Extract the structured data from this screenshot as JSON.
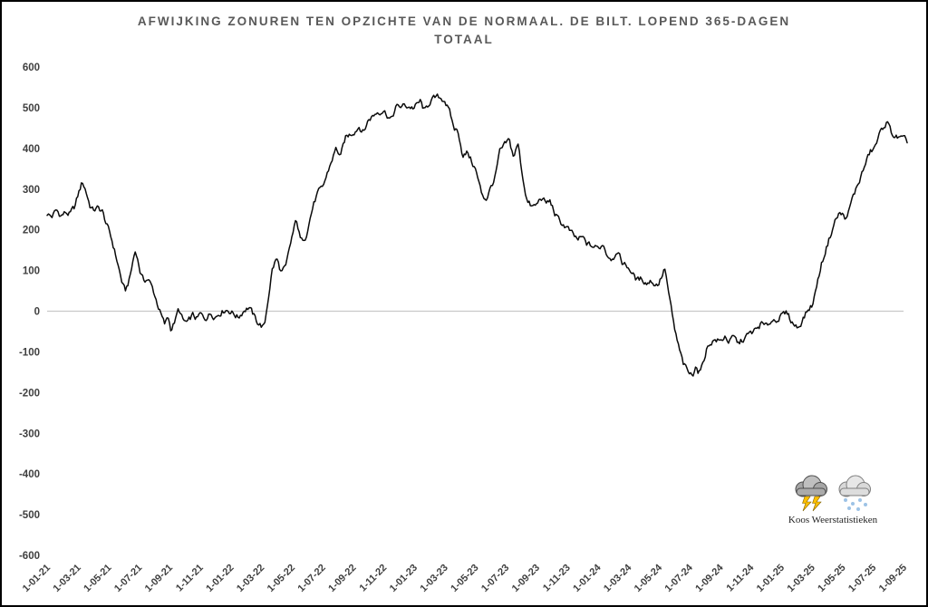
{
  "title": {
    "line1": "AFWIJKING ZONUREN TEN OPZICHTE VAN DE NORMAAL. DE BILT. LOPEND 365-DAGEN",
    "line2": "TOTAAL"
  },
  "watermark": {
    "text": "Koos Weerstatistieken",
    "icons": [
      "storm-cloud-icon",
      "snow-cloud-icon"
    ]
  },
  "chart_data": {
    "type": "line",
    "title": "Afwijking zonuren ten opzichte van de normaal. De Bilt. Lopend 365-dagen totaal",
    "xlabel": "",
    "ylabel": "",
    "ylim": [
      -600,
      600
    ],
    "ytick_step": 100,
    "grid": "zero-line-only",
    "legend": "none",
    "line_color": "#0a0a0a",
    "zero_line_color": "#c9c9c9",
    "axis_label_color": "#3f3f3f",
    "x_tick_labels": [
      "1-01-21",
      "1-03-21",
      "1-05-21",
      "1-07-21",
      "1-09-21",
      "1-11-21",
      "1-01-22",
      "1-03-22",
      "1-05-22",
      "1-07-22",
      "1-09-22",
      "1-11-22",
      "1-01-23",
      "1-03-23",
      "1-05-23",
      "1-07-23",
      "1-09-23",
      "1-11-23",
      "1-01-24",
      "1-03-24",
      "1-05-24",
      "1-07-24",
      "1-09-24",
      "1-11-24",
      "1-01-25",
      "1-03-25",
      "1-05-25",
      "1-07-25",
      "1-09-25"
    ],
    "x_unit": "months since 2021-01-01 (ticks every 2 months)",
    "series": [
      {
        "name": "Afwijking zonuren lopend 365-dagen totaal",
        "points": [
          [
            0,
            240
          ],
          [
            0.3,
            232
          ],
          [
            0.6,
            248
          ],
          [
            0.9,
            235
          ],
          [
            1.2,
            242
          ],
          [
            1.5,
            238
          ],
          [
            1.8,
            255
          ],
          [
            2.1,
            295
          ],
          [
            2.3,
            318
          ],
          [
            2.5,
            300
          ],
          [
            2.8,
            260
          ],
          [
            3.0,
            248
          ],
          [
            3.3,
            253
          ],
          [
            3.6,
            246
          ],
          [
            3.8,
            222
          ],
          [
            4.1,
            190
          ],
          [
            4.3,
            165
          ],
          [
            4.6,
            120
          ],
          [
            4.9,
            70
          ],
          [
            5.1,
            48
          ],
          [
            5.4,
            80
          ],
          [
            5.7,
            140
          ],
          [
            5.8,
            150
          ],
          [
            6.1,
            95
          ],
          [
            6.3,
            75
          ],
          [
            6.6,
            80
          ],
          [
            6.9,
            55
          ],
          [
            7.2,
            20
          ],
          [
            7.5,
            -15
          ],
          [
            7.7,
            -35
          ],
          [
            7.9,
            -12
          ],
          [
            8.1,
            -45
          ],
          [
            8.4,
            -20
          ],
          [
            8.6,
            5
          ],
          [
            8.9,
            -25
          ],
          [
            9.2,
            -30
          ],
          [
            9.5,
            -10
          ],
          [
            9.8,
            -20
          ],
          [
            10.0,
            -8
          ],
          [
            10.3,
            -18
          ],
          [
            10.7,
            -5
          ],
          [
            11.0,
            -12
          ],
          [
            11.4,
            0
          ],
          [
            11.7,
            5
          ],
          [
            12.0,
            0
          ],
          [
            12.5,
            -15
          ],
          [
            12.9,
            5
          ],
          [
            13.2,
            10
          ],
          [
            13.7,
            -25
          ],
          [
            14.0,
            -35
          ],
          [
            14.2,
            -40
          ],
          [
            14.7,
            100
          ],
          [
            15.0,
            130
          ],
          [
            15.3,
            95
          ],
          [
            15.6,
            105
          ],
          [
            16.0,
            180
          ],
          [
            16.3,
            225
          ],
          [
            16.6,
            170
          ],
          [
            16.9,
            185
          ],
          [
            17.4,
            260
          ],
          [
            17.7,
            290
          ],
          [
            18.0,
            300
          ],
          [
            18.6,
            370
          ],
          [
            18.9,
            400
          ],
          [
            19.2,
            380
          ],
          [
            19.5,
            425
          ],
          [
            20.0,
            440
          ],
          [
            20.4,
            455
          ],
          [
            20.7,
            440
          ],
          [
            21.0,
            470
          ],
          [
            21.3,
            480
          ],
          [
            21.6,
            490
          ],
          [
            22.0,
            495
          ],
          [
            22.5,
            470
          ],
          [
            22.8,
            500
          ],
          [
            23.4,
            505
          ],
          [
            24.0,
            500
          ],
          [
            24.4,
            515
          ],
          [
            24.7,
            490
          ],
          [
            25.1,
            520
          ],
          [
            25.6,
            525
          ],
          [
            26.0,
            520
          ],
          [
            26.3,
            490
          ],
          [
            26.6,
            450
          ],
          [
            26.9,
            440
          ],
          [
            27.2,
            380
          ],
          [
            27.5,
            390
          ],
          [
            27.8,
            365
          ],
          [
            28.0,
            350
          ],
          [
            28.4,
            290
          ],
          [
            28.7,
            275
          ],
          [
            29.3,
            330
          ],
          [
            29.6,
            390
          ],
          [
            29.9,
            405
          ],
          [
            30.2,
            420
          ],
          [
            30.5,
            380
          ],
          [
            30.8,
            410
          ],
          [
            31.1,
            330
          ],
          [
            31.4,
            270
          ],
          [
            31.7,
            255
          ],
          [
            32.0,
            260
          ],
          [
            32.3,
            280
          ],
          [
            32.6,
            265
          ],
          [
            32.9,
            270
          ],
          [
            33.2,
            240
          ],
          [
            33.5,
            220
          ],
          [
            34.0,
            205
          ],
          [
            34.4,
            185
          ],
          [
            34.7,
            175
          ],
          [
            35.0,
            180
          ],
          [
            35.3,
            165
          ],
          [
            35.6,
            160
          ],
          [
            36.0,
            155
          ],
          [
            36.4,
            165
          ],
          [
            36.6,
            140
          ],
          [
            37.0,
            130
          ],
          [
            37.2,
            150
          ],
          [
            37.6,
            120
          ],
          [
            38.1,
            105
          ],
          [
            38.3,
            90
          ],
          [
            38.6,
            75
          ],
          [
            38.9,
            80
          ],
          [
            39.2,
            70
          ],
          [
            39.5,
            75
          ],
          [
            39.8,
            65
          ],
          [
            40.0,
            70
          ],
          [
            40.4,
            105
          ],
          [
            40.7,
            30
          ],
          [
            41.0,
            -40
          ],
          [
            41.3,
            -90
          ],
          [
            41.6,
            -130
          ],
          [
            41.9,
            -150
          ],
          [
            42.2,
            -160
          ],
          [
            42.4,
            -130
          ],
          [
            42.6,
            -150
          ],
          [
            42.8,
            -140
          ],
          [
            43.1,
            -95
          ],
          [
            43.4,
            -75
          ],
          [
            43.7,
            -70
          ],
          [
            44.1,
            -75
          ],
          [
            44.3,
            -60
          ],
          [
            44.6,
            -75
          ],
          [
            44.9,
            -65
          ],
          [
            45.2,
            -80
          ],
          [
            45.5,
            -70
          ],
          [
            45.8,
            -60
          ],
          [
            46.0,
            -55
          ],
          [
            46.4,
            -45
          ],
          [
            46.7,
            -30
          ],
          [
            47.0,
            -40
          ],
          [
            47.3,
            -25
          ],
          [
            47.6,
            -20
          ],
          [
            47.9,
            -15
          ],
          [
            48.1,
            -10
          ],
          [
            48.4,
            -5
          ],
          [
            48.6,
            -20
          ],
          [
            48.9,
            -35
          ],
          [
            49.1,
            -40
          ],
          [
            49.4,
            -20
          ],
          [
            49.7,
            0
          ],
          [
            50.1,
            20
          ],
          [
            50.3,
            60
          ],
          [
            50.6,
            110
          ],
          [
            50.9,
            150
          ],
          [
            51.2,
            185
          ],
          [
            51.5,
            220
          ],
          [
            51.8,
            240
          ],
          [
            52.1,
            235
          ],
          [
            52.3,
            225
          ],
          [
            52.6,
            270
          ],
          [
            52.9,
            300
          ],
          [
            53.2,
            330
          ],
          [
            53.5,
            360
          ],
          [
            53.8,
            390
          ],
          [
            54.1,
            400
          ],
          [
            54.4,
            430
          ],
          [
            54.7,
            455
          ],
          [
            54.9,
            465
          ],
          [
            55.2,
            440
          ],
          [
            55.4,
            430
          ],
          [
            55.7,
            425
          ],
          [
            56.0,
            420
          ],
          [
            56.3,
            415
          ]
        ]
      }
    ]
  }
}
